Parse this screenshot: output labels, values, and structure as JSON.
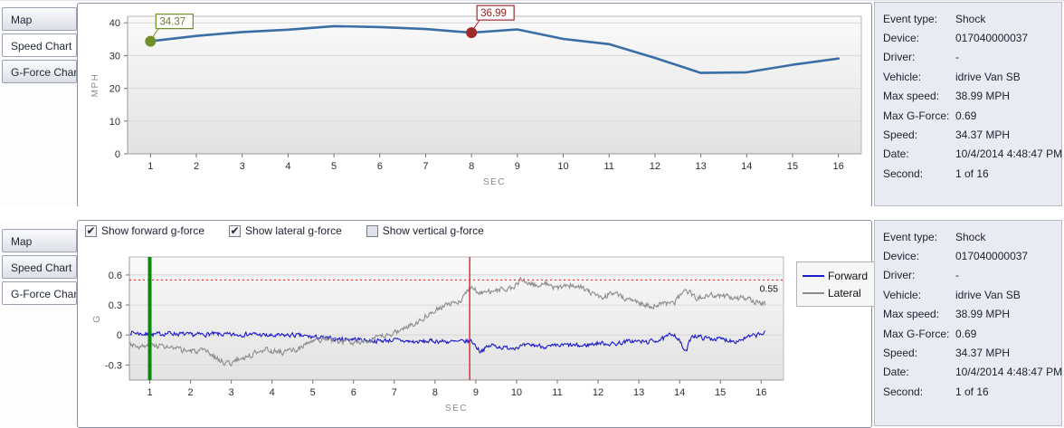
{
  "ui": {
    "check_glyph": "✔"
  },
  "tabs": {
    "items": [
      {
        "label": "Map"
      },
      {
        "label": "Speed Chart"
      },
      {
        "label": "G-Force Chart"
      }
    ],
    "top_active": "Speed Chart",
    "bottom_active": "G-Force Chart"
  },
  "info_panel": {
    "rows": [
      {
        "label": "Event type:",
        "value": "Shock"
      },
      {
        "label": "Device:",
        "value": "017040000037"
      },
      {
        "label": "Driver:",
        "value": "-"
      },
      {
        "label": "Vehicle:",
        "value": "idrive Van SB"
      },
      {
        "label": "Max speed:",
        "value": "38.99 MPH"
      },
      {
        "label": "Max G-Force:",
        "value": "0.69"
      },
      {
        "label": "Speed:",
        "value": "34.37 MPH"
      },
      {
        "label": "Date:",
        "value": "10/4/2014 4:48:47 PM"
      },
      {
        "label": "Second:",
        "value": "1 of 16"
      }
    ]
  },
  "checkboxes": [
    {
      "label": "Show forward g-force",
      "checked": true
    },
    {
      "label": "Show lateral g-force",
      "checked": true
    },
    {
      "label": "Show vertical g-force",
      "checked": false
    }
  ],
  "chart_data": [
    {
      "id": "speed",
      "type": "line",
      "title": "",
      "xlabel": "SEC",
      "ylabel": "MPH",
      "x": [
        1,
        2,
        3,
        4,
        5,
        6,
        7,
        8,
        9,
        10,
        11,
        12,
        13,
        14,
        15,
        16
      ],
      "values": [
        34.37,
        36.0,
        37.2,
        37.9,
        39.0,
        38.7,
        38.1,
        36.99,
        38.0,
        35.1,
        33.5,
        29.3,
        24.7,
        24.9,
        27.2,
        29.1
      ],
      "xlim": [
        0.5,
        16.5
      ],
      "ylim": [
        0,
        42
      ],
      "yticks": [
        0,
        10,
        20,
        30,
        40
      ],
      "xticks": [
        1,
        2,
        3,
        4,
        5,
        6,
        7,
        8,
        9,
        10,
        11,
        12,
        13,
        14,
        15,
        16
      ],
      "grid": true,
      "line_color": "#3a6ea5",
      "markers": [
        {
          "x": 1,
          "y": 34.37,
          "label": "34.37",
          "color": "#6f8f28",
          "text_color": "#6d7c28"
        },
        {
          "x": 8,
          "y": 36.99,
          "label": "36.99",
          "color": "#9e2b2b",
          "text_color": "#8b1f1f"
        }
      ]
    },
    {
      "id": "gforce",
      "type": "line",
      "title": "",
      "xlabel": "SEC",
      "ylabel": "G",
      "xlim": [
        0.5,
        16.55
      ],
      "ylim": [
        -0.45,
        0.78
      ],
      "yticks": [
        -0.3,
        0,
        0.3,
        0.6
      ],
      "xticks": [
        1,
        2,
        3,
        4,
        5,
        6,
        7,
        8,
        9,
        10,
        11,
        12,
        13,
        14,
        15,
        16
      ],
      "grid": true,
      "legend_position": "right",
      "threshold": {
        "y": 0.55,
        "label": "0.55",
        "color": "#ff2020"
      },
      "vlines": [
        {
          "x": 1,
          "color": "#0a8a0a",
          "width": 4,
          "name": "event-second-marker"
        },
        {
          "x": 8.85,
          "color": "#e03030",
          "width": 1.5,
          "name": "shock-moment-marker"
        }
      ],
      "xrange": [
        0.52,
        16.1
      ],
      "series": [
        {
          "name": "Forward",
          "color": "#1a1acc",
          "amp": 0.02,
          "seed": 7,
          "trend": [
            [
              0.5,
              0.03
            ],
            [
              1,
              0.0
            ],
            [
              1.5,
              0.02
            ],
            [
              2,
              0.0
            ],
            [
              2.5,
              0.01
            ],
            [
              3,
              0.0
            ],
            [
              3.5,
              0.01
            ],
            [
              4,
              -0.01
            ],
            [
              4.5,
              0.0
            ],
            [
              5,
              -0.02
            ],
            [
              5.5,
              -0.04
            ],
            [
              6,
              -0.04
            ],
            [
              6.5,
              -0.06
            ],
            [
              7,
              -0.05
            ],
            [
              7.5,
              -0.07
            ],
            [
              8,
              -0.06
            ],
            [
              8.5,
              -0.07
            ],
            [
              8.9,
              -0.06
            ],
            [
              9.1,
              -0.16
            ],
            [
              9.4,
              -0.1
            ],
            [
              9.7,
              -0.13
            ],
            [
              10,
              -0.12
            ],
            [
              10.4,
              -0.1
            ],
            [
              10.8,
              -0.12
            ],
            [
              11.2,
              -0.1
            ],
            [
              11.6,
              -0.11
            ],
            [
              12,
              -0.08
            ],
            [
              12.4,
              -0.09
            ],
            [
              12.8,
              -0.06
            ],
            [
              13.2,
              -0.07
            ],
            [
              13.6,
              -0.04
            ],
            [
              13.85,
              0.02
            ],
            [
              14.0,
              -0.06
            ],
            [
              14.15,
              -0.18
            ],
            [
              14.3,
              0.0
            ],
            [
              14.6,
              -0.03
            ],
            [
              15,
              -0.04
            ],
            [
              15.4,
              -0.06
            ],
            [
              15.7,
              -0.02
            ],
            [
              16.1,
              0.02
            ]
          ]
        },
        {
          "name": "Lateral",
          "color": "#8c8c8c",
          "amp": 0.026,
          "seed": 3,
          "trend": [
            [
              0.5,
              -0.08
            ],
            [
              0.8,
              -0.12
            ],
            [
              1.2,
              -0.1
            ],
            [
              1.6,
              -0.14
            ],
            [
              2,
              -0.16
            ],
            [
              2.4,
              -0.17
            ],
            [
              2.8,
              -0.27
            ],
            [
              3.0,
              -0.28
            ],
            [
              3.2,
              -0.24
            ],
            [
              3.5,
              -0.2
            ],
            [
              3.7,
              -0.14
            ],
            [
              4,
              -0.16
            ],
            [
              4.3,
              -0.17
            ],
            [
              4.6,
              -0.15
            ],
            [
              5,
              -0.06
            ],
            [
              5.3,
              -0.04
            ],
            [
              5.6,
              -0.06
            ],
            [
              6,
              -0.08
            ],
            [
              6.3,
              -0.05
            ],
            [
              6.6,
              -0.03
            ],
            [
              7,
              0.02
            ],
            [
              7.3,
              0.08
            ],
            [
              7.6,
              0.14
            ],
            [
              8,
              0.26
            ],
            [
              8.3,
              0.3
            ],
            [
              8.6,
              0.33
            ],
            [
              8.85,
              0.48
            ],
            [
              9.0,
              0.44
            ],
            [
              9.3,
              0.43
            ],
            [
              9.6,
              0.45
            ],
            [
              9.9,
              0.47
            ],
            [
              10.1,
              0.55
            ],
            [
              10.4,
              0.5
            ],
            [
              10.7,
              0.52
            ],
            [
              10.9,
              0.46
            ],
            [
              11.2,
              0.5
            ],
            [
              11.5,
              0.49
            ],
            [
              11.8,
              0.42
            ],
            [
              12.1,
              0.38
            ],
            [
              12.4,
              0.42
            ],
            [
              12.7,
              0.36
            ],
            [
              13,
              0.33
            ],
            [
              13.3,
              0.28
            ],
            [
              13.6,
              0.32
            ],
            [
              13.9,
              0.33
            ],
            [
              14.15,
              0.46
            ],
            [
              14.4,
              0.37
            ],
            [
              14.7,
              0.39
            ],
            [
              15,
              0.4
            ],
            [
              15.3,
              0.37
            ],
            [
              15.6,
              0.36
            ],
            [
              15.9,
              0.33
            ],
            [
              16.1,
              0.3
            ]
          ]
        }
      ]
    }
  ]
}
